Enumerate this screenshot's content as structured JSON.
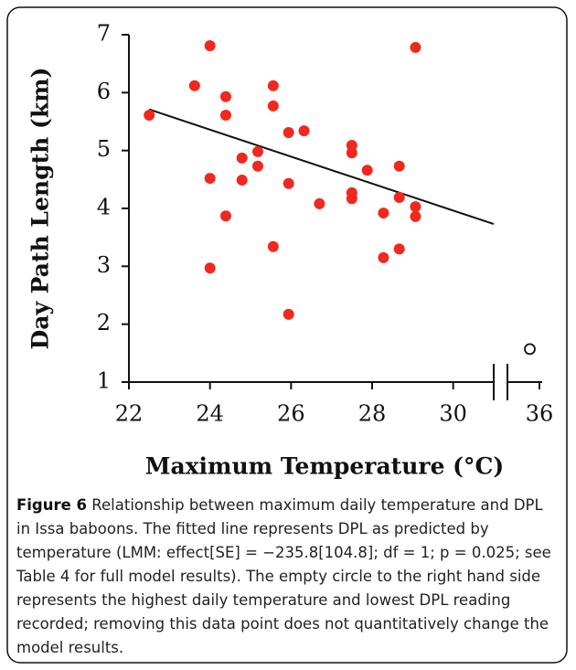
{
  "chart_data": {
    "type": "scatter",
    "xlabel": "Maximum Temperature (°C)",
    "ylabel": "Day Path Length (km)",
    "xlim": [
      22,
      31
    ],
    "xticks": [
      22,
      24,
      26,
      28,
      30
    ],
    "x2lim": [
      35,
      36
    ],
    "x2ticks": [
      36
    ],
    "ylim": [
      1,
      7
    ],
    "yticks": [
      1,
      2,
      3,
      4,
      5,
      6,
      7
    ],
    "points": {
      "color": "#f0281e",
      "x": [
        22.5,
        23.62,
        24.0,
        24.0,
        24.0,
        24.39,
        24.39,
        24.39,
        24.79,
        24.79,
        25.18,
        25.18,
        25.56,
        25.56,
        25.56,
        25.94,
        25.94,
        25.94,
        26.32,
        26.7,
        27.5,
        27.5,
        27.5,
        27.5,
        27.88,
        28.28,
        28.28,
        28.67,
        28.67,
        28.67,
        29.07,
        29.07,
        29.07
      ],
      "y": [
        5.61,
        6.12,
        6.81,
        4.52,
        2.97,
        5.93,
        5.61,
        3.87,
        4.87,
        4.49,
        4.98,
        4.73,
        6.12,
        5.77,
        3.34,
        5.31,
        4.43,
        2.17,
        5.34,
        4.08,
        5.09,
        4.96,
        4.27,
        4.17,
        4.66,
        3.92,
        3.15,
        4.73,
        4.19,
        3.3,
        6.78,
        4.03,
        3.86
      ]
    },
    "outlier": {
      "color": "#111111",
      "x": [
        35.7
      ],
      "y": [
        1.57
      ]
    },
    "fit": {
      "color": "#111111",
      "x": [
        22.5,
        31
      ],
      "y": [
        5.71,
        3.73
      ]
    }
  },
  "caption": {
    "label": "Figure 6",
    "text": "Relationship between maximum daily temperature and DPL in Issa baboons. The fitted line represents DPL as predicted by temperature (LMM: effect[SE] = −235.8[104.8]; df = 1; p = 0.025; see Table 4 for full model results). The empty circle to the right hand side represents the highest daily temperature and lowest DPL reading recorded; removing this data point does not quantitatively change the model results."
  }
}
